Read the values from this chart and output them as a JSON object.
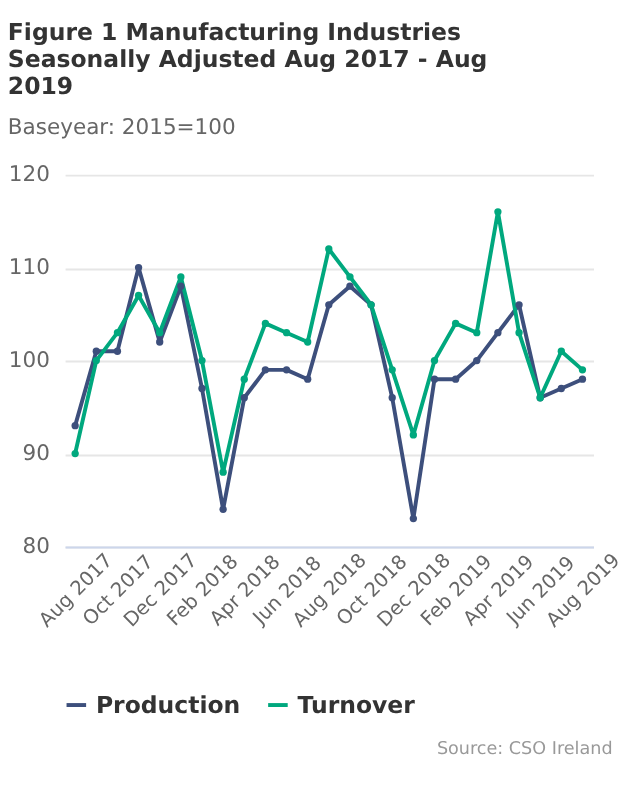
{
  "chart_data": {
    "type": "line",
    "title": "Figure 1 Manufacturing Industries Seasonally Adjusted Aug 2017 - Aug 2019",
    "subtitle": "Baseyear: 2015=100",
    "categories": [
      "Aug 2017",
      null,
      "Oct 2017",
      null,
      "Dec 2017",
      null,
      "Feb 2018",
      null,
      "Apr 2018",
      null,
      "Jun 2018",
      null,
      "Aug 2018",
      null,
      "Oct 2018",
      null,
      "Dec 2018",
      null,
      "Feb 2019",
      null,
      "Apr 2019",
      null,
      "Jun 2019",
      null,
      "Aug 2019"
    ],
    "series": [
      {
        "name": "Production",
        "color": "#3d4f7c",
        "values": [
          93,
          101,
          101,
          110,
          102,
          108,
          97,
          84,
          96,
          99,
          99,
          98,
          106,
          108,
          106,
          96,
          83,
          98,
          98,
          100,
          103,
          106,
          96,
          97,
          98
        ]
      },
      {
        "name": "Turnover",
        "color": "#00a87e",
        "values": [
          90,
          100,
          103,
          107,
          103,
          109,
          100,
          88,
          98,
          104,
          103,
          102,
          112,
          109,
          106,
          99,
          92,
          100,
          104,
          103,
          116,
          103,
          96,
          101,
          99
        ]
      }
    ],
    "ylim": [
      80,
      120
    ],
    "yticks": [
      80,
      90,
      100,
      110,
      120
    ],
    "grid": "y",
    "legend": "bottom",
    "marker": "circle",
    "line_style": "solid",
    "annotations": [
      "Source: CSO Ireland"
    ]
  }
}
